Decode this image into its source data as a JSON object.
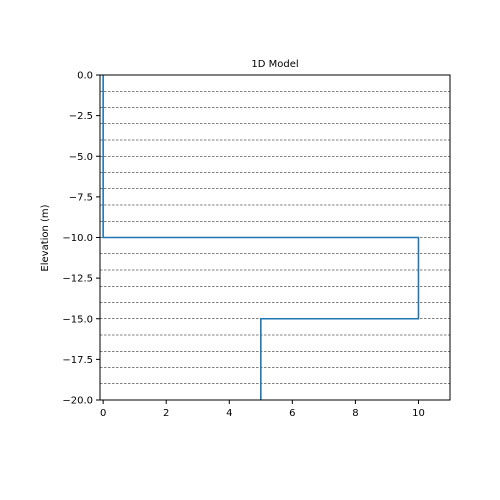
{
  "chart_data": {
    "type": "line",
    "title": "1D Model",
    "xlabel": "",
    "ylabel": "Elevation (m)",
    "xlim": [
      -0.1,
      11
    ],
    "ylim": [
      -20,
      0
    ],
    "x_ticks": [
      0,
      2,
      4,
      6,
      8,
      10
    ],
    "x_tick_labels": [
      "0",
      "2",
      "4",
      "6",
      "8",
      "10"
    ],
    "y_ticks": [
      0,
      -2.5,
      -5,
      -7.5,
      -10,
      -12.5,
      -15,
      -17.5,
      -20
    ],
    "y_tick_labels": [
      "0.0",
      "−2.5",
      "−5.0",
      "−7.5",
      "−10.0",
      "−12.5",
      "−15.0",
      "−17.5",
      "−20.0"
    ],
    "grid_y_dashed": [
      -1,
      -2,
      -3,
      -4,
      -5,
      -6,
      -7,
      -8,
      -9,
      -10,
      -11,
      -12,
      -13,
      -14,
      -15,
      -16,
      -17,
      -18,
      -19
    ],
    "series": [
      {
        "color": "#1f77b4",
        "points": [
          [
            0,
            0
          ],
          [
            0,
            -10
          ],
          [
            10,
            -10
          ],
          [
            10,
            -15
          ],
          [
            5,
            -15
          ],
          [
            5,
            -20
          ]
        ]
      }
    ]
  }
}
